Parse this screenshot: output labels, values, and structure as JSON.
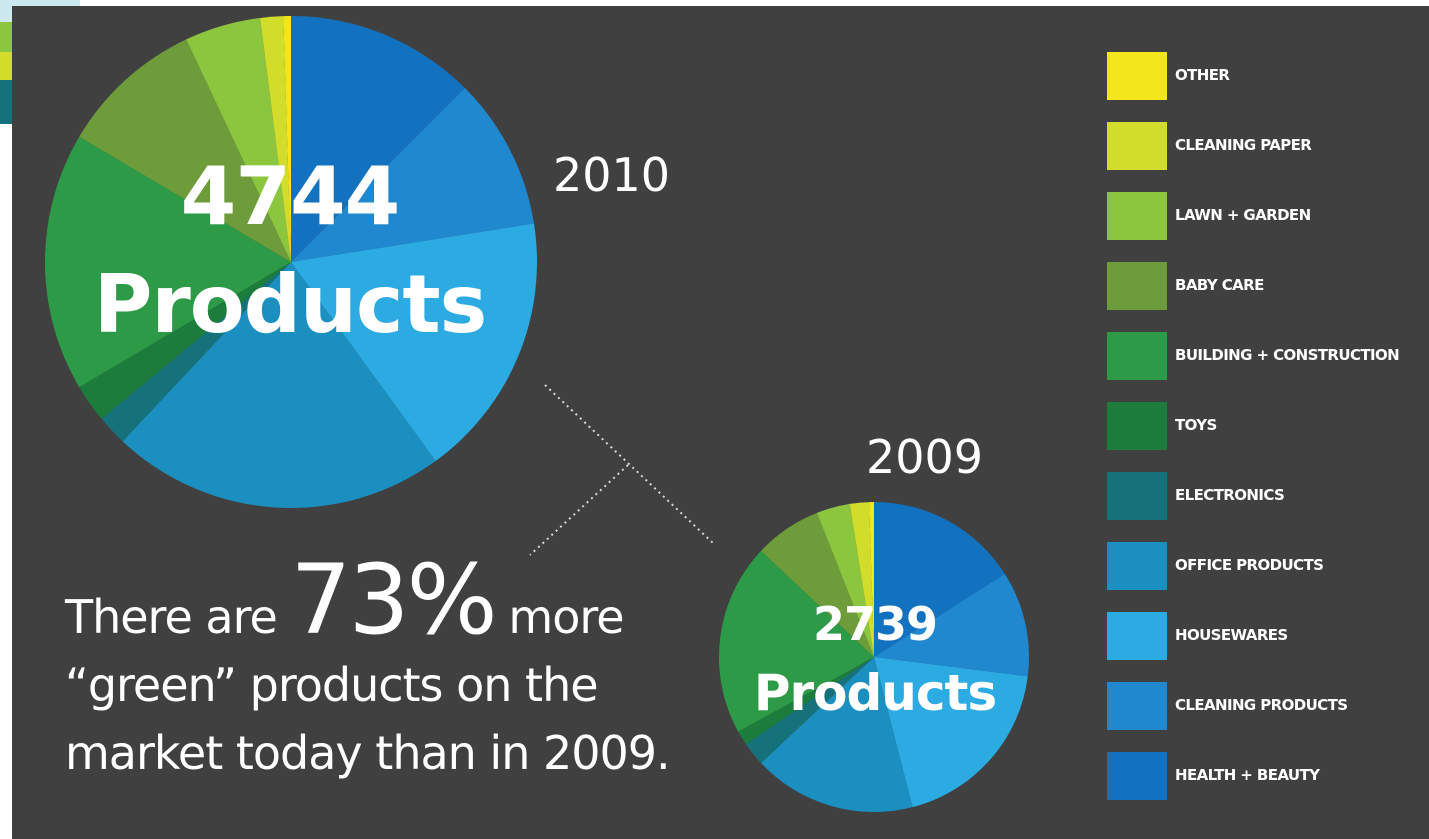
{
  "colors": {
    "background": "#404040",
    "text": "#ffffff",
    "other": "#f2e51a",
    "cleaning_paper": "#d2dc2b",
    "lawn_garden": "#8cc63e",
    "baby_care": "#6e9c3a",
    "building_construction": "#2d9a48",
    "toys": "#1b7c3c",
    "electronics": "#16727a",
    "office_products": "#1b8fc0",
    "housewares": "#2caae2",
    "cleaning_products": "#1f88cf",
    "health_beauty": "#1272c0"
  },
  "chart_data": [
    {
      "type": "pie",
      "title": "2010",
      "center_value": "4744",
      "center_label": "Products",
      "categories": [
        "HEALTH + BEAUTY",
        "CLEANING PRODUCTS",
        "HOUSEWARES",
        "OFFICE PRODUCTS",
        "ELECTRONICS",
        "TOYS",
        "BUILDING + CONSTRUCTION",
        "BABY CARE",
        "LAWN + GARDEN",
        "CLEANING PAPER",
        "OTHER"
      ],
      "values": [
        12.5,
        10,
        17.5,
        22,
        2,
        2.5,
        17,
        9.5,
        5,
        1.5,
        0.5
      ]
    },
    {
      "type": "pie",
      "title": "2009",
      "center_value": "2739",
      "center_label": "Products",
      "categories": [
        "HEALTH + BEAUTY",
        "CLEANING PRODUCTS",
        "HOUSEWARES",
        "OFFICE PRODUCTS",
        "ELECTRONICS",
        "TOYS",
        "BUILDING + CONSTRUCTION",
        "BABY CARE",
        "LAWN + GARDEN",
        "CLEANING PAPER",
        "OTHER"
      ],
      "values": [
        16,
        11,
        19,
        17,
        2.5,
        1.5,
        20,
        7,
        3.5,
        2,
        0.5
      ]
    }
  ],
  "legend": [
    {
      "label": "OTHER",
      "color": "#f2e51a"
    },
    {
      "label": "CLEANING PAPER",
      "color": "#d2dc2b"
    },
    {
      "label": "LAWN + GARDEN",
      "color": "#8cc63e"
    },
    {
      "label": "BABY CARE",
      "color": "#6e9c3a"
    },
    {
      "label": "BUILDING + CONSTRUCTION",
      "color": "#2d9a48"
    },
    {
      "label": "TOYS",
      "color": "#1b7c3c"
    },
    {
      "label": "ELECTRONICS",
      "color": "#16727a"
    },
    {
      "label": "OFFICE PRODUCTS",
      "color": "#1b8fc0"
    },
    {
      "label": "HOUSEWARES",
      "color": "#2caae2"
    },
    {
      "label": "CLEANING PRODUCTS",
      "color": "#1f88cf"
    },
    {
      "label": "HEALTH + BEAUTY",
      "color": "#1272c0"
    }
  ],
  "caption": {
    "prefix": "There are ",
    "percent": "73%",
    "suffix": " more",
    "line2": "“green” products on the",
    "line3": "market today than in 2009."
  }
}
